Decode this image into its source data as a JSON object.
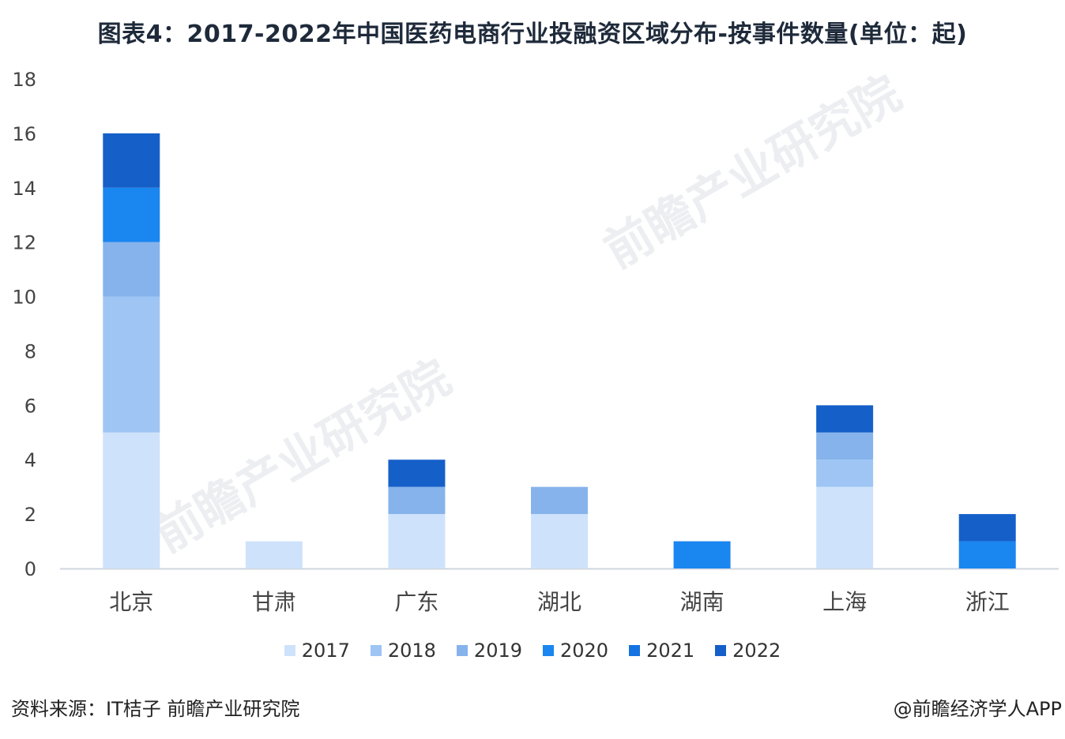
{
  "title": "图表4：2017-2022年中国医药电商行业投融资区域分布-按事件数量(单位：起)",
  "source": "资料来源：IT桔子 前瞻产业研究院",
  "credit": "@前瞻经济学人APP",
  "watermark": "前瞻产业研究院",
  "chart_data": {
    "type": "bar",
    "stacked": true,
    "categories": [
      "北京",
      "甘肃",
      "广东",
      "湖北",
      "湖南",
      "上海",
      "浙江"
    ],
    "series": [
      {
        "name": "2017",
        "color": "#cfe2fb",
        "values": [
          5,
          1,
          2,
          2,
          0,
          3,
          0
        ]
      },
      {
        "name": "2018",
        "color": "#9ec5f4",
        "values": [
          5,
          0,
          0,
          0,
          0,
          1,
          0
        ]
      },
      {
        "name": "2019",
        "color": "#86b3ec",
        "values": [
          2,
          0,
          1,
          1,
          0,
          1,
          0
        ]
      },
      {
        "name": "2020",
        "color": "#1a86f0",
        "values": [
          2,
          0,
          0,
          0,
          1,
          0,
          1
        ]
      },
      {
        "name": "2021",
        "color": "#1473e0",
        "values": [
          0,
          0,
          0,
          0,
          0,
          0,
          0
        ]
      },
      {
        "name": "2022",
        "color": "#155fc9",
        "values": [
          2,
          0,
          1,
          0,
          0,
          1,
          1
        ]
      }
    ],
    "ylim": [
      0,
      18
    ],
    "yticks": [
      0,
      2,
      4,
      6,
      8,
      10,
      12,
      14,
      16,
      18
    ],
    "grid": false,
    "legend": "bottom"
  }
}
